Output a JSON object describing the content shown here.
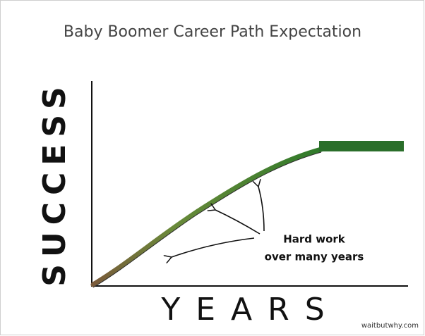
{
  "title": "Baby Boomer Career Path Expectation",
  "y_label": "SUCCESS",
  "x_label": "YEARS",
  "annotation": {
    "line1": "Hard work",
    "line2": "over many years"
  },
  "credit": "waitbutwhy.com"
}
